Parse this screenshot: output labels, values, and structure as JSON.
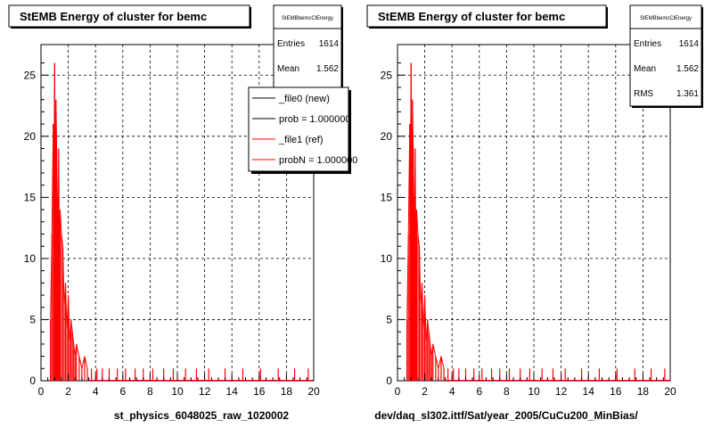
{
  "footer_text": "",
  "chart_data": [
    {
      "type": "histogram",
      "title": "StEMB Energy of cluster for bemc",
      "xlabel": "st_physics_6048025_raw_1020002",
      "ylabel": "",
      "xlim": [
        0,
        20
      ],
      "ylim": [
        0,
        27.5
      ],
      "xticks": [
        0,
        2,
        4,
        6,
        8,
        10,
        12,
        14,
        16,
        18,
        20
      ],
      "yticks": [
        0,
        5,
        10,
        15,
        20,
        25
      ],
      "grid": true,
      "stats": {
        "name": "StEMBbemcClEnergy",
        "entries_label": "Entries",
        "entries": "1614",
        "mean_label": "Mean",
        "mean": "1.562"
      },
      "legend": {
        "placement": "top-right",
        "items": [
          {
            "label": "_file0 (new)",
            "color": "#000000"
          },
          {
            "label": "prob = 1.000000",
            "color": "#000000"
          },
          {
            "label": "_file1 (ref)",
            "color": "#ff0000"
          },
          {
            "label": "probN = 1.000000",
            "color": "#ff0000"
          }
        ]
      },
      "series": [
        {
          "color": "#ff0000",
          "peaks": [
            [
              0.7,
              5
            ],
            [
              0.8,
              12
            ],
            [
              0.9,
              21
            ],
            [
              0.95,
              16
            ],
            [
              1.0,
              26
            ],
            [
              1.05,
              12
            ],
            [
              1.1,
              23
            ],
            [
              1.15,
              19
            ],
            [
              1.2,
              15
            ],
            [
              1.25,
              10
            ],
            [
              1.3,
              19
            ],
            [
              1.35,
              9
            ],
            [
              1.4,
              14
            ],
            [
              1.5,
              12
            ],
            [
              1.6,
              11
            ],
            [
              1.7,
              6
            ],
            [
              1.8,
              8
            ],
            [
              1.9,
              4
            ],
            [
              2.0,
              7
            ],
            [
              2.1,
              3
            ],
            [
              2.2,
              5
            ],
            [
              2.3,
              4
            ],
            [
              2.4,
              3
            ],
            [
              2.5,
              2
            ],
            [
              2.6,
              3
            ],
            [
              2.8,
              2
            ],
            [
              3.0,
              1
            ],
            [
              3.2,
              2
            ],
            [
              3.4,
              1
            ],
            [
              3.7,
              1
            ],
            [
              4.1,
              1
            ],
            [
              4.5,
              1
            ],
            [
              5.0,
              1
            ],
            [
              5.6,
              1
            ],
            [
              6.2,
              1
            ],
            [
              6.9,
              1
            ],
            [
              7.5,
              1
            ],
            [
              8.2,
              1
            ],
            [
              9.0,
              1
            ],
            [
              9.7,
              1
            ],
            [
              10.6,
              1
            ],
            [
              11.4,
              1
            ],
            [
              12.3,
              1
            ],
            [
              13.5,
              1
            ],
            [
              14.8,
              1
            ],
            [
              16.1,
              1
            ],
            [
              17.4,
              1
            ],
            [
              18.6,
              1
            ],
            [
              19.6,
              1
            ]
          ]
        }
      ]
    },
    {
      "type": "histogram",
      "title": "StEMB Energy of cluster for bemc",
      "xlabel": "dev/daq_sl302.ittf/Sat/year_2005/CuCu200_MinBias/",
      "ylabel": "",
      "xlim": [
        0,
        20
      ],
      "ylim": [
        0,
        27.5
      ],
      "xticks": [
        0,
        2,
        4,
        6,
        8,
        10,
        12,
        14,
        16,
        18,
        20
      ],
      "yticks": [
        0,
        5,
        10,
        15,
        20,
        25
      ],
      "grid": true,
      "stats": {
        "name": "StEMBbemcClEnergy",
        "entries_label": "Entries",
        "entries": "1614",
        "mean_label": "Mean",
        "mean": "1.562",
        "rms_label": "RMS",
        "rms": "1.361"
      },
      "series": [
        {
          "color": "#ff0000",
          "peaks": [
            [
              0.7,
              5
            ],
            [
              0.8,
              12
            ],
            [
              0.9,
              21
            ],
            [
              0.95,
              16
            ],
            [
              1.0,
              26
            ],
            [
              1.05,
              12
            ],
            [
              1.1,
              23
            ],
            [
              1.15,
              19
            ],
            [
              1.2,
              15
            ],
            [
              1.25,
              10
            ],
            [
              1.3,
              19
            ],
            [
              1.35,
              9
            ],
            [
              1.4,
              14
            ],
            [
              1.5,
              12
            ],
            [
              1.6,
              11
            ],
            [
              1.7,
              6
            ],
            [
              1.8,
              8
            ],
            [
              1.9,
              4
            ],
            [
              2.0,
              7
            ],
            [
              2.1,
              3
            ],
            [
              2.2,
              5
            ],
            [
              2.3,
              4
            ],
            [
              2.4,
              3
            ],
            [
              2.5,
              2
            ],
            [
              2.6,
              3
            ],
            [
              2.8,
              2
            ],
            [
              3.0,
              1
            ],
            [
              3.2,
              2
            ],
            [
              3.4,
              1
            ],
            [
              3.7,
              1
            ],
            [
              4.1,
              1
            ],
            [
              4.5,
              1
            ],
            [
              5.0,
              1
            ],
            [
              5.6,
              1
            ],
            [
              6.2,
              1
            ],
            [
              6.9,
              1
            ],
            [
              7.5,
              1
            ],
            [
              8.2,
              1
            ],
            [
              9.0,
              1
            ],
            [
              9.7,
              1
            ],
            [
              10.6,
              1
            ],
            [
              11.4,
              1
            ],
            [
              12.3,
              1
            ],
            [
              13.5,
              1
            ],
            [
              14.8,
              1
            ],
            [
              16.1,
              1
            ],
            [
              17.4,
              1
            ],
            [
              18.6,
              1
            ],
            [
              19.6,
              1
            ]
          ]
        }
      ]
    }
  ]
}
